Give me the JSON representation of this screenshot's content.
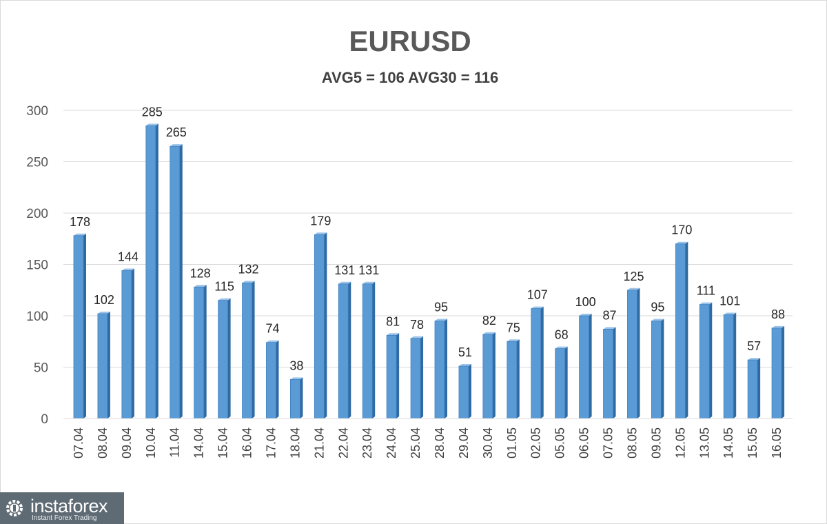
{
  "chart_data": {
    "type": "bar",
    "title": "EURUSD",
    "subtitle": "AVG5 = 106 AVG30 = 116",
    "xlabel": "",
    "ylabel": "",
    "ylim": [
      0,
      300
    ],
    "yticks": [
      0,
      50,
      100,
      150,
      200,
      250,
      300
    ],
    "grid": true,
    "bar_color": "#5b9bd5",
    "categories": [
      "07.04",
      "08.04",
      "09.04",
      "10.04",
      "11.04",
      "14.04",
      "15.04",
      "16.04",
      "17.04",
      "18.04",
      "21.04",
      "22.04",
      "23.04",
      "24.04",
      "25.04",
      "28.04",
      "29.04",
      "30.04",
      "01.05",
      "02.05",
      "05.05",
      "06.05",
      "07.05",
      "08.05",
      "09.05",
      "12.05",
      "13.05",
      "14.05",
      "15.05",
      "16.05"
    ],
    "values": [
      178,
      102,
      144,
      285,
      265,
      128,
      115,
      132,
      74,
      38,
      179,
      131,
      131,
      81,
      78,
      95,
      51,
      82,
      75,
      107,
      68,
      100,
      87,
      125,
      95,
      170,
      111,
      101,
      57,
      88
    ]
  },
  "watermark": {
    "name": "instaforex",
    "tagline": "Instant Forex Trading"
  }
}
